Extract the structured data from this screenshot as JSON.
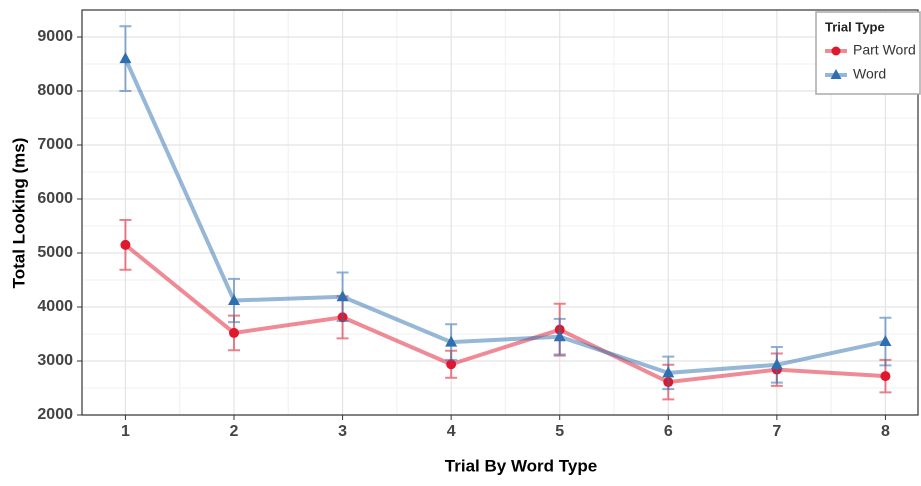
{
  "chart_data": {
    "type": "line",
    "x_label": "Trial By Word Type",
    "y_label": "Total Looking (ms)",
    "x": [
      1,
      2,
      3,
      4,
      5,
      6,
      7,
      8
    ],
    "series": [
      {
        "name": "Part Word",
        "color": "#e0182d",
        "marker": "circle",
        "values": [
          5150,
          3520,
          3810,
          2940,
          3580,
          2610,
          2840,
          2720
        ],
        "errors": [
          460,
          320,
          390,
          250,
          480,
          320,
          300,
          300
        ]
      },
      {
        "name": "Word",
        "color": "#2f6fb0",
        "marker": "triangle",
        "values": [
          8600,
          4120,
          4190,
          3350,
          3450,
          2780,
          2930,
          3360
        ],
        "errors": [
          600,
          400,
          450,
          330,
          330,
          300,
          330,
          440
        ]
      }
    ],
    "legend_title": "Trial Type",
    "legend": "top-right",
    "xlim": [
      0.6,
      8.3
    ],
    "xticks": [
      1,
      2,
      3,
      4,
      5,
      6,
      7,
      8
    ],
    "ylim": [
      2000,
      9500
    ],
    "yticks": [
      2000,
      3000,
      4000,
      5000,
      6000,
      7000,
      8000,
      9000
    ],
    "grid": true
  }
}
